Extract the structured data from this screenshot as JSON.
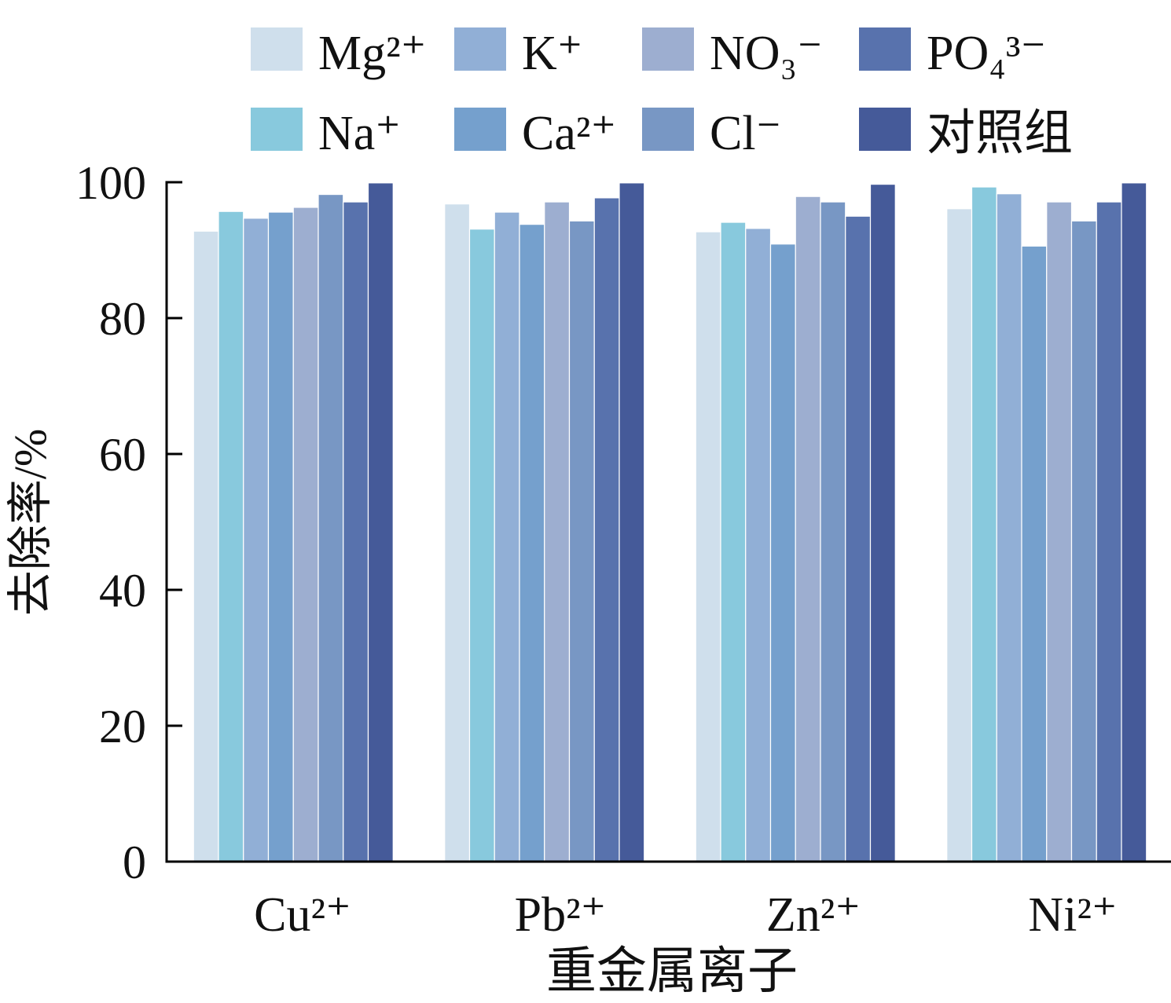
{
  "chart_data": {
    "type": "bar",
    "categories": [
      "Cu²⁺",
      "Pb²⁺",
      "Zn²⁺",
      "Ni²⁺"
    ],
    "series": [
      {
        "name": "Mg²⁺",
        "color": "#cfdfec",
        "values": [
          92.8,
          96.8,
          92.7,
          96.1
        ]
      },
      {
        "name": "Na⁺",
        "color": "#88c9dd",
        "values": [
          95.7,
          93.1,
          94.1,
          99.3
        ]
      },
      {
        "name": "K⁺",
        "color": "#91afd6",
        "values": [
          94.7,
          95.6,
          93.2,
          98.3
        ]
      },
      {
        "name": "Ca²⁺",
        "color": "#75a0cd",
        "values": [
          95.6,
          93.8,
          90.9,
          90.6
        ]
      },
      {
        "name": "NO₃⁻",
        "color": "#9daed0",
        "values": [
          96.3,
          97.1,
          97.9,
          97.1
        ]
      },
      {
        "name": "Cl⁻",
        "color": "#7897c4",
        "values": [
          98.2,
          94.3,
          97.1,
          94.3
        ]
      },
      {
        "name": "PO₄³⁻",
        "color": "#5872ad",
        "values": [
          97.1,
          97.7,
          95.0,
          97.1
        ]
      },
      {
        "name": "对照组",
        "color": "#455a99",
        "values": [
          99.9,
          99.9,
          99.7,
          99.9
        ]
      }
    ],
    "xlabel": "重金属离子",
    "ylabel": "去除率/%",
    "ylim": [
      0,
      100
    ],
    "yticks": [
      0,
      20,
      40,
      60,
      80,
      100
    ],
    "grid": false,
    "legend_position": "top"
  }
}
